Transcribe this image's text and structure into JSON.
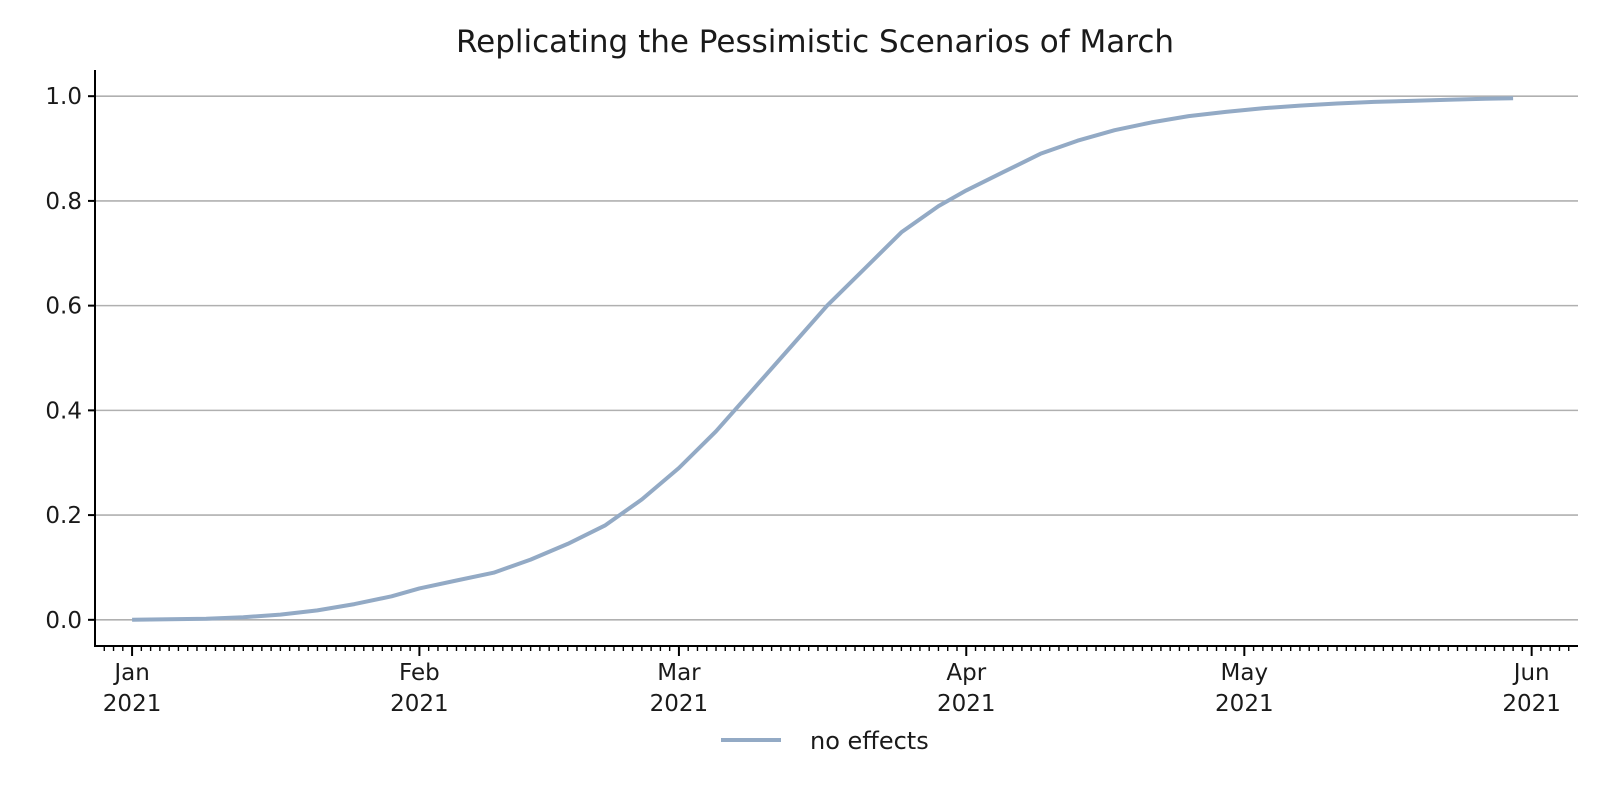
{
  "chart_data": {
    "type": "line",
    "title": "Replicating the Pessimistic Scenarios of March",
    "xlabel": "",
    "ylabel": "",
    "x_range": [
      "2020-12-28",
      "2021-06-06"
    ],
    "ylim": [
      -0.05,
      1.05
    ],
    "y_ticks": [
      0.0,
      0.2,
      0.4,
      0.6,
      0.8,
      1.0
    ],
    "y_tick_labels": [
      "0.0",
      "0.2",
      "0.4",
      "0.6",
      "0.8",
      "1.0"
    ],
    "x_major_ticks": [
      {
        "date": "2021-01-01",
        "label_month": "Jan",
        "label_year": "2021"
      },
      {
        "date": "2021-02-01",
        "label_month": "Feb",
        "label_year": "2021"
      },
      {
        "date": "2021-03-01",
        "label_month": "Mar",
        "label_year": "2021"
      },
      {
        "date": "2021-04-01",
        "label_month": "Apr",
        "label_year": "2021"
      },
      {
        "date": "2021-05-01",
        "label_month": "May",
        "label_year": "2021"
      },
      {
        "date": "2021-06-01",
        "label_month": "Jun",
        "label_year": "2021"
      }
    ],
    "x_minor_ticks": "daily",
    "grid": "horizontal",
    "legend_position": "bottom-center",
    "series": [
      {
        "name": "no effects",
        "color": "#93aac5",
        "points": [
          [
            "2021-01-01",
            0.0
          ],
          [
            "2021-01-05",
            0.001
          ],
          [
            "2021-01-09",
            0.002
          ],
          [
            "2021-01-13",
            0.005
          ],
          [
            "2021-01-17",
            0.01
          ],
          [
            "2021-01-21",
            0.018
          ],
          [
            "2021-01-25",
            0.03
          ],
          [
            "2021-01-29",
            0.045
          ],
          [
            "2021-02-01",
            0.06
          ],
          [
            "2021-02-05",
            0.075
          ],
          [
            "2021-02-09",
            0.09
          ],
          [
            "2021-02-13",
            0.115
          ],
          [
            "2021-02-17",
            0.145
          ],
          [
            "2021-02-21",
            0.18
          ],
          [
            "2021-02-25",
            0.23
          ],
          [
            "2021-03-01",
            0.29
          ],
          [
            "2021-03-05",
            0.36
          ],
          [
            "2021-03-09",
            0.44
          ],
          [
            "2021-03-13",
            0.52
          ],
          [
            "2021-03-17",
            0.6
          ],
          [
            "2021-03-21",
            0.67
          ],
          [
            "2021-03-25",
            0.74
          ],
          [
            "2021-03-29",
            0.79
          ],
          [
            "2021-04-01",
            0.82
          ],
          [
            "2021-04-05",
            0.855
          ],
          [
            "2021-04-09",
            0.89
          ],
          [
            "2021-04-13",
            0.915
          ],
          [
            "2021-04-17",
            0.935
          ],
          [
            "2021-04-21",
            0.95
          ],
          [
            "2021-04-25",
            0.962
          ],
          [
            "2021-04-29",
            0.97
          ],
          [
            "2021-05-03",
            0.977
          ],
          [
            "2021-05-07",
            0.982
          ],
          [
            "2021-05-11",
            0.986
          ],
          [
            "2021-05-15",
            0.989
          ],
          [
            "2021-05-19",
            0.991
          ],
          [
            "2021-05-23",
            0.993
          ],
          [
            "2021-05-27",
            0.995
          ],
          [
            "2021-05-30",
            0.996
          ]
        ]
      }
    ]
  }
}
